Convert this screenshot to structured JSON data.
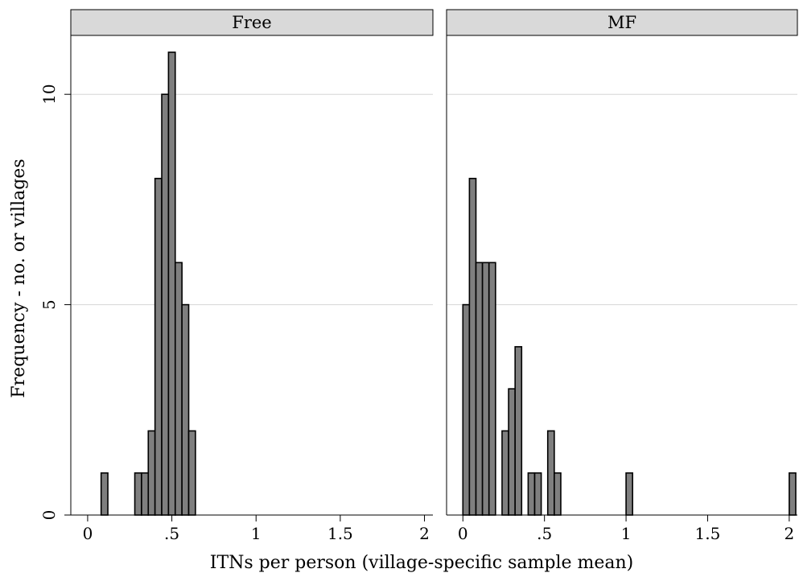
{
  "chart_data": {
    "type": "bar",
    "xlabel": "ITNs per person (village-specific sample mean)",
    "ylabel": "Frequency - no. or villages",
    "xlim": [
      -0.1,
      2.05
    ],
    "ylim": [
      0,
      11.4
    ],
    "xticks": [
      0,
      0.5,
      1,
      1.5,
      2
    ],
    "xtick_labels": [
      "0",
      ".5",
      "1",
      "1.5",
      "2"
    ],
    "yticks": [
      0,
      5,
      10
    ],
    "ytick_labels": [
      "0",
      "5",
      "10"
    ],
    "bin_width": 0.04,
    "grid": "horizontal",
    "panels": [
      {
        "name": "Free",
        "bins": [
          {
            "x": 0.1,
            "count": 1
          },
          {
            "x": 0.3,
            "count": 1
          },
          {
            "x": 0.34,
            "count": 1
          },
          {
            "x": 0.38,
            "count": 2
          },
          {
            "x": 0.42,
            "count": 8
          },
          {
            "x": 0.46,
            "count": 10
          },
          {
            "x": 0.5,
            "count": 11
          },
          {
            "x": 0.54,
            "count": 6
          },
          {
            "x": 0.58,
            "count": 5
          },
          {
            "x": 0.62,
            "count": 2
          }
        ]
      },
      {
        "name": "MF",
        "bins": [
          {
            "x": 0.02,
            "count": 5
          },
          {
            "x": 0.06,
            "count": 8
          },
          {
            "x": 0.1,
            "count": 6
          },
          {
            "x": 0.14,
            "count": 6
          },
          {
            "x": 0.18,
            "count": 6
          },
          {
            "x": 0.26,
            "count": 2
          },
          {
            "x": 0.3,
            "count": 3
          },
          {
            "x": 0.34,
            "count": 4
          },
          {
            "x": 0.42,
            "count": 1
          },
          {
            "x": 0.46,
            "count": 1
          },
          {
            "x": 0.54,
            "count": 2
          },
          {
            "x": 0.58,
            "count": 1
          },
          {
            "x": 1.02,
            "count": 1
          },
          {
            "x": 2.02,
            "count": 1
          }
        ]
      }
    ]
  }
}
